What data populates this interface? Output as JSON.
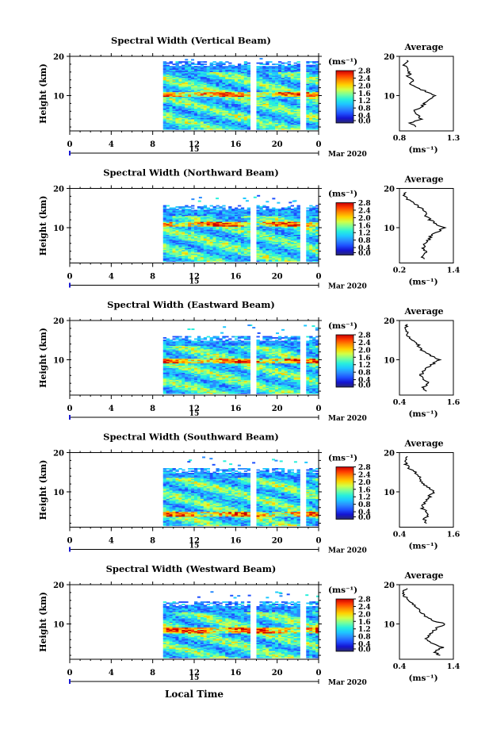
{
  "figure": {
    "x_axis_label": "Local Time",
    "date_label": "Mar 2020",
    "day_label": "15",
    "colorbar_units": "(ms⁻¹)",
    "colorbar_ticks": [
      "0.0",
      "0.4",
      "0.8",
      "1.2",
      "1.6",
      "2.0",
      "2.4",
      "2.8"
    ],
    "average_title": "Average",
    "average_xlabel": "(ms⁻¹)",
    "colors": {
      "data_gap": "#ffffff",
      "scale": [
        "#2a2a6e",
        "#1414d2",
        "#1e50ff",
        "#2a8cff",
        "#1ec8ff",
        "#28f0dc",
        "#78ff9a",
        "#d2ff46",
        "#ffd200",
        "#ff8c00",
        "#ff3c00",
        "#c80000"
      ]
    }
  },
  "chart_data": [
    {
      "type": "heatmap",
      "title": "Spectral Width (Vertical Beam)",
      "ylabel": "Height (km)",
      "x_ticks": [
        "0",
        "4",
        "8",
        "12",
        "16",
        "20",
        "0"
      ],
      "y_ticks": [
        "20",
        "10"
      ],
      "xlim": [
        0,
        24
      ],
      "ylim": [
        1,
        20
      ],
      "data_start_hour": 9,
      "data_top_km": 18.5,
      "gap_hours": [
        [
          17.6,
          18.0
        ],
        [
          22.5,
          22.8
        ]
      ],
      "colorbar_range": [
        0.0,
        2.8
      ],
      "average_profile": {
        "xlim": [
          0.8,
          1.3
        ],
        "x_ticks": [
          "0.8",
          "1.3"
        ],
        "y_ticks": [
          "20",
          "10"
        ],
        "heights_km": [
          2,
          3,
          4,
          5,
          6,
          7,
          8,
          9,
          10,
          11,
          12,
          13,
          14,
          15,
          16,
          17,
          18,
          19
        ],
        "values": [
          0.95,
          0.9,
          1.0,
          0.97,
          0.93,
          1.0,
          1.03,
          1.07,
          1.12,
          1.05,
          0.97,
          0.9,
          0.92,
          0.88,
          0.9,
          0.86,
          0.84,
          0.87
        ]
      }
    },
    {
      "type": "heatmap",
      "title": "Spectral Width (Northward Beam)",
      "ylabel": "Height (km)",
      "x_ticks": [
        "0",
        "4",
        "8",
        "12",
        "16",
        "20",
        "0"
      ],
      "y_ticks": [
        "20",
        "10"
      ],
      "xlim": [
        0,
        24
      ],
      "ylim": [
        1,
        20
      ],
      "data_start_hour": 9,
      "data_top_km": 15.5,
      "gap_hours": [
        [
          17.6,
          18.0
        ],
        [
          22.5,
          22.8
        ]
      ],
      "colorbar_range": [
        0.0,
        2.8
      ],
      "average_profile": {
        "xlim": [
          0.2,
          1.4
        ],
        "x_ticks": [
          "0.2",
          "1.4"
        ],
        "y_ticks": [
          "20",
          "10"
        ],
        "heights_km": [
          2,
          3,
          4,
          5,
          6,
          7,
          8,
          9,
          10,
          11,
          12,
          13,
          14,
          15,
          16,
          17,
          18,
          19
        ],
        "values": [
          0.75,
          0.7,
          0.8,
          0.72,
          0.78,
          0.85,
          0.9,
          1.05,
          1.2,
          1.0,
          0.88,
          0.8,
          0.75,
          0.68,
          0.55,
          0.4,
          0.3,
          0.35
        ]
      }
    },
    {
      "type": "heatmap",
      "title": "Spectral Width (Eastward Beam)",
      "ylabel": "Height (km)",
      "x_ticks": [
        "0",
        "4",
        "8",
        "12",
        "16",
        "20",
        "0"
      ],
      "y_ticks": [
        "20",
        "10"
      ],
      "xlim": [
        0,
        24
      ],
      "ylim": [
        1,
        20
      ],
      "data_start_hour": 9,
      "data_top_km": 16,
      "gap_hours": [
        [
          17.6,
          18.0
        ],
        [
          22.5,
          22.8
        ]
      ],
      "colorbar_range": [
        0.0,
        2.8
      ],
      "average_profile": {
        "xlim": [
          0.4,
          1.6
        ],
        "x_ticks": [
          "0.4",
          "1.6"
        ],
        "y_ticks": [
          "20",
          "10"
        ],
        "heights_km": [
          2,
          3,
          4,
          5,
          6,
          7,
          8,
          9,
          10,
          11,
          12,
          13,
          14,
          15,
          16,
          17,
          18,
          19
        ],
        "values": [
          1.0,
          0.9,
          1.05,
          0.95,
          0.88,
          0.92,
          1.0,
          1.15,
          1.3,
          1.1,
          0.95,
          0.85,
          0.8,
          0.7,
          0.6,
          0.55,
          0.5,
          0.58
        ]
      }
    },
    {
      "type": "heatmap",
      "title": "Spectral Width (Southward Beam)",
      "ylabel": "Height (km)",
      "x_ticks": [
        "0",
        "4",
        "8",
        "12",
        "16",
        "20",
        "0"
      ],
      "y_ticks": [
        "20",
        "10"
      ],
      "xlim": [
        0,
        24
      ],
      "ylim": [
        1,
        20
      ],
      "data_start_hour": 9,
      "data_top_km": 16,
      "gap_hours": [
        [
          17.6,
          18.0
        ],
        [
          22.5,
          22.8
        ]
      ],
      "colorbar_range": [
        0.0,
        2.8
      ],
      "average_profile": {
        "xlim": [
          0.4,
          1.6
        ],
        "x_ticks": [
          "0.4",
          "1.6"
        ],
        "y_ticks": [
          "20",
          "10"
        ],
        "heights_km": [
          2,
          3,
          4,
          5,
          6,
          7,
          8,
          9,
          10,
          11,
          12,
          13,
          14,
          15,
          16,
          17,
          18,
          19
        ],
        "values": [
          1.0,
          0.95,
          1.05,
          0.98,
          0.9,
          0.95,
          1.02,
          1.08,
          1.15,
          1.05,
          0.95,
          0.88,
          0.82,
          0.75,
          0.62,
          0.55,
          0.5,
          0.58
        ]
      }
    },
    {
      "type": "heatmap",
      "title": "Spectral Width (Westward Beam)",
      "ylabel": "Height (km)",
      "x_ticks": [
        "0",
        "4",
        "8",
        "12",
        "16",
        "20",
        "0"
      ],
      "y_ticks": [
        "20",
        "10"
      ],
      "xlim": [
        0,
        24
      ],
      "ylim": [
        1,
        20
      ],
      "data_start_hour": 9,
      "data_top_km": 15.5,
      "gap_hours": [
        [
          17.6,
          18.0
        ],
        [
          22.5,
          22.8
        ]
      ],
      "colorbar_range": [
        0.0,
        2.8
      ],
      "average_profile": {
        "xlim": [
          0.4,
          1.4
        ],
        "x_ticks": [
          "0.4",
          "1.4"
        ],
        "y_ticks": [
          "20",
          "10"
        ],
        "heights_km": [
          2,
          3,
          4,
          5,
          6,
          7,
          8,
          9,
          10,
          11,
          12,
          13,
          14,
          15,
          16,
          17,
          18,
          19
        ],
        "values": [
          1.15,
          1.05,
          1.2,
          1.0,
          0.9,
          0.95,
          1.0,
          1.1,
          1.25,
          1.0,
          0.88,
          0.8,
          0.72,
          0.65,
          0.6,
          0.5,
          0.45,
          0.55
        ]
      }
    }
  ]
}
